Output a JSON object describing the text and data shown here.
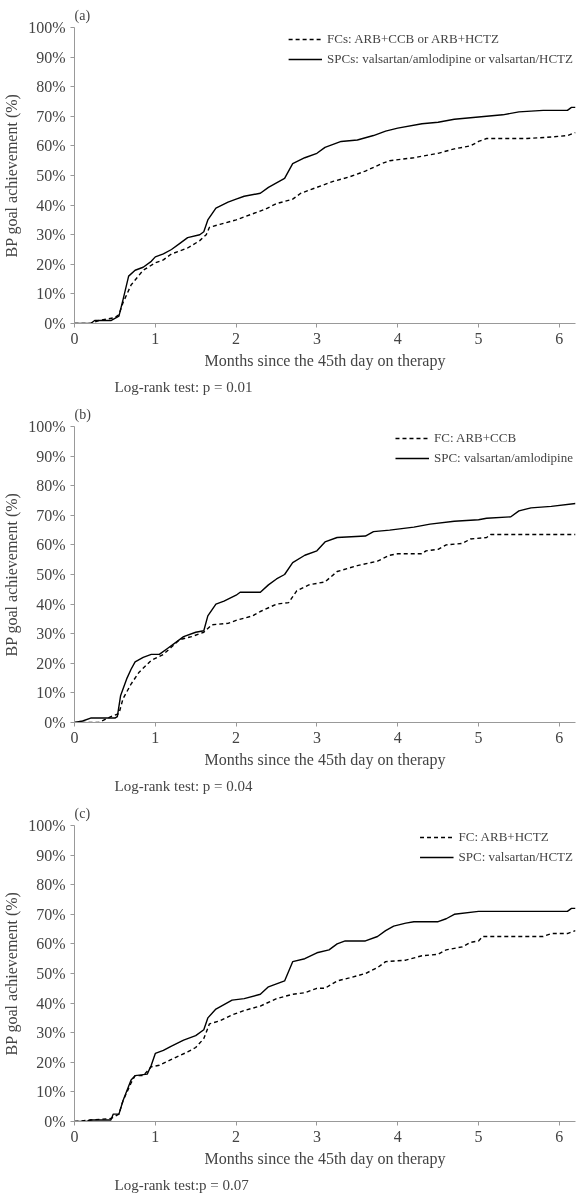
{
  "chart_data": [
    {
      "type": "line",
      "title": "(a)",
      "xlabel": "Months since the 45th day on therapy",
      "ylabel": "BP goal achievement (%)",
      "annotations": [
        "Log-rank test: p = 0.01"
      ],
      "xlim": [
        0,
        6.2
      ],
      "xticks": [
        0,
        1,
        2,
        3,
        4,
        5,
        6
      ],
      "ylim": [
        0,
        100
      ],
      "yticks": [
        {
          "value": 0,
          "label": "0%"
        },
        {
          "value": 10,
          "label": "10%"
        },
        {
          "value": 20,
          "label": "20%"
        },
        {
          "value": 30,
          "label": "30%"
        },
        {
          "value": 40,
          "label": "40%"
        },
        {
          "value": 50,
          "label": "50%"
        },
        {
          "value": 60,
          "label": "60%"
        },
        {
          "value": 70,
          "label": "70%"
        },
        {
          "value": 80,
          "label": "80%"
        },
        {
          "value": 90,
          "label": "90%"
        },
        {
          "value": 100,
          "label": "100%"
        }
      ],
      "grid": false,
      "legend": "top right",
      "marker": "none",
      "series": [
        {
          "name": "FCs: ARB+CCB or ARB+HCTZ",
          "color": "#000000",
          "line_style": "dashed",
          "x": [
            0,
            0.2,
            0.3,
            0.5,
            0.55,
            0.6,
            0.7,
            0.85,
            1.0,
            1.1,
            1.2,
            1.4,
            1.55,
            1.63,
            1.67,
            1.8,
            2.0,
            2.2,
            2.35,
            2.5,
            2.7,
            2.8,
            3.0,
            3.2,
            3.4,
            3.6,
            3.8,
            3.9,
            4.2,
            4.5,
            4.7,
            4.9,
            5.0,
            5.1,
            5.6,
            5.9,
            6.1,
            6.2
          ],
          "values": [
            0,
            0,
            1,
            2,
            3,
            7,
            13,
            18,
            20.5,
            21.5,
            23.5,
            25.5,
            28,
            30,
            32.5,
            33.5,
            35,
            37,
            38.5,
            40.5,
            42,
            44,
            46,
            48,
            49.5,
            51.5,
            54,
            55,
            56,
            57.5,
            59,
            60,
            61.5,
            62.5,
            62.5,
            63,
            63.5,
            64.5
          ]
        },
        {
          "name": "SPCs: valsartan/amlodipine or valsartan/HCTZ",
          "color": "#000000",
          "line_style": "solid",
          "x": [
            0,
            0.2,
            0.25,
            0.45,
            0.55,
            0.6,
            0.67,
            0.75,
            0.85,
            0.95,
            1.0,
            1.1,
            1.2,
            1.3,
            1.4,
            1.55,
            1.6,
            1.65,
            1.75,
            1.9,
            2.0,
            2.1,
            2.3,
            2.4,
            2.5,
            2.6,
            2.7,
            2.85,
            3.0,
            3.1,
            3.3,
            3.5,
            3.7,
            3.85,
            4.0,
            4.3,
            4.5,
            4.7,
            4.9,
            5.1,
            5.3,
            5.5,
            5.8,
            6.1,
            6.15,
            6.2
          ],
          "values": [
            0,
            0,
            1,
            1,
            2.5,
            8,
            16,
            18,
            19,
            21,
            22.5,
            23.5,
            25,
            27,
            29,
            30,
            31,
            35,
            39,
            41,
            42,
            43,
            44,
            46,
            47.5,
            49,
            54,
            56,
            57.5,
            59.5,
            61.5,
            62,
            63.5,
            65,
            66,
            67.5,
            68,
            69,
            69.5,
            70,
            70.5,
            71.5,
            72,
            72,
            73,
            73
          ]
        }
      ]
    },
    {
      "type": "line",
      "title": "(b)",
      "xlabel": "Months since the 45th day on therapy",
      "ylabel": "BP goal achievement (%)",
      "annotations": [
        "Log-rank test: p = 0.04"
      ],
      "xlim": [
        0,
        6.2
      ],
      "xticks": [
        0,
        1,
        2,
        3,
        4,
        5,
        6
      ],
      "ylim": [
        0,
        100
      ],
      "yticks": [
        {
          "value": 0,
          "label": "0%"
        },
        {
          "value": 10,
          "label": "10%"
        },
        {
          "value": 20,
          "label": "20%"
        },
        {
          "value": 30,
          "label": "30%"
        },
        {
          "value": 40,
          "label": "40%"
        },
        {
          "value": 50,
          "label": "50%"
        },
        {
          "value": 60,
          "label": "60%"
        },
        {
          "value": 70,
          "label": "70%"
        },
        {
          "value": 80,
          "label": "80%"
        },
        {
          "value": 90,
          "label": "90%"
        },
        {
          "value": 100,
          "label": "100%"
        }
      ],
      "grid": false,
      "legend": "top right",
      "marker": "none",
      "series": [
        {
          "name": "FC: ARB+CCB",
          "color": "#000000",
          "line_style": "dashed",
          "x": [
            0,
            0.3,
            0.45,
            0.55,
            0.6,
            0.7,
            0.8,
            0.95,
            1.1,
            1.2,
            1.3,
            1.45,
            1.6,
            1.7,
            1.9,
            2.0,
            2.2,
            2.3,
            2.5,
            2.65,
            2.75,
            2.9,
            3.1,
            3.25,
            3.5,
            3.75,
            3.9,
            4.0,
            4.3,
            4.35,
            4.5,
            4.6,
            4.8,
            4.9,
            5.1,
            5.15,
            6.2
          ],
          "values": [
            0,
            0,
            2,
            3,
            8,
            13,
            17,
            21,
            23,
            25.5,
            28,
            29,
            30.5,
            33,
            33.5,
            34.5,
            36,
            37.5,
            40,
            40.5,
            44.5,
            46.5,
            47.5,
            51,
            53,
            54.5,
            56.5,
            57,
            57,
            58,
            58.5,
            60,
            60.5,
            62,
            62.5,
            63.5,
            63.5
          ]
        },
        {
          "name": "SPC: valsartan/amlodipine",
          "color": "#000000",
          "line_style": "solid",
          "x": [
            0,
            0.1,
            0.2,
            0.5,
            0.53,
            0.57,
            0.65,
            0.7,
            0.75,
            0.85,
            0.95,
            1.05,
            1.15,
            1.25,
            1.35,
            1.5,
            1.6,
            1.65,
            1.75,
            1.85,
            2.0,
            2.05,
            2.3,
            2.4,
            2.5,
            2.6,
            2.7,
            2.85,
            3.0,
            3.1,
            3.25,
            3.6,
            3.7,
            3.9,
            4.2,
            4.4,
            4.7,
            5.0,
            5.1,
            5.4,
            5.5,
            5.65,
            5.9,
            6.2
          ],
          "values": [
            0,
            0.5,
            1.5,
            1.5,
            2,
            9,
            15,
            18,
            20.5,
            22,
            23,
            23,
            25,
            27,
            29,
            30.5,
            31,
            36,
            40,
            41,
            43,
            44,
            44,
            46.5,
            48.5,
            50,
            54,
            56.5,
            58,
            61,
            62.5,
            63,
            64.5,
            65,
            66,
            67,
            68,
            68.5,
            69,
            69.5,
            71.5,
            72.5,
            73,
            74
          ]
        }
      ]
    },
    {
      "type": "line",
      "title": "(c)",
      "xlabel": "Months since the 45th day on therapy",
      "ylabel": "BP goal achievement (%)",
      "annotations": [
        "Log-rank test:p = 0.07"
      ],
      "xlim": [
        0,
        6.2
      ],
      "xticks": [
        0,
        1,
        2,
        3,
        4,
        5,
        6
      ],
      "ylim": [
        0,
        100
      ],
      "yticks": [
        {
          "value": 0,
          "label": "0%"
        },
        {
          "value": 10,
          "label": "10%"
        },
        {
          "value": 20,
          "label": "20%"
        },
        {
          "value": 30,
          "label": "30%"
        },
        {
          "value": 40,
          "label": "40%"
        },
        {
          "value": 50,
          "label": "50%"
        },
        {
          "value": 60,
          "label": "60%"
        },
        {
          "value": 70,
          "label": "70%"
        },
        {
          "value": 80,
          "label": "80%"
        },
        {
          "value": 90,
          "label": "90%"
        },
        {
          "value": 100,
          "label": "100%"
        }
      ],
      "grid": false,
      "legend": "top right",
      "marker": "none",
      "series": [
        {
          "name": "FC: ARB+HCTZ",
          "color": "#000000",
          "line_style": "dashed",
          "x": [
            0,
            0.2,
            0.45,
            0.55,
            0.6,
            0.7,
            0.75,
            0.85,
            0.95,
            1.05,
            1.2,
            1.4,
            1.5,
            1.6,
            1.67,
            1.8,
            1.95,
            2.1,
            2.3,
            2.5,
            2.7,
            2.85,
            3.0,
            3.1,
            3.25,
            3.4,
            3.6,
            3.75,
            3.85,
            4.1,
            4.3,
            4.5,
            4.6,
            4.8,
            4.9,
            5.0,
            5.05,
            5.8,
            5.9,
            6.1,
            6.2
          ],
          "values": [
            0,
            0.5,
            1,
            2.5,
            7,
            13,
            15.5,
            15.5,
            18.5,
            19,
            21,
            23.5,
            25,
            28,
            33,
            34,
            36,
            37.5,
            39,
            41.5,
            43,
            43.5,
            45,
            45,
            47.5,
            48.5,
            50,
            52,
            54,
            54.5,
            56,
            56.5,
            58,
            59,
            60.5,
            61,
            62.5,
            62.5,
            63.5,
            63.5,
            64.5
          ]
        },
        {
          "name": "SPC: valsartan/HCTZ",
          "color": "#000000",
          "line_style": "solid",
          "x": [
            0,
            0.15,
            0.2,
            0.45,
            0.48,
            0.55,
            0.6,
            0.7,
            0.75,
            0.9,
            0.95,
            1.0,
            1.1,
            1.2,
            1.35,
            1.5,
            1.6,
            1.65,
            1.75,
            1.85,
            1.95,
            2.1,
            2.3,
            2.4,
            2.5,
            2.6,
            2.7,
            2.85,
            3.0,
            3.15,
            3.25,
            3.35,
            3.6,
            3.75,
            3.85,
            3.95,
            4.1,
            4.2,
            4.5,
            4.6,
            4.7,
            5.0,
            6.1,
            6.15,
            6.2
          ],
          "values": [
            0,
            0,
            0.5,
            0.5,
            2.5,
            2.5,
            7,
            14,
            15.5,
            16,
            19,
            23,
            24,
            25.5,
            27.5,
            29,
            31,
            35,
            38,
            39.5,
            41,
            41.5,
            43,
            45.5,
            46.5,
            47.5,
            54,
            55,
            57,
            58,
            60,
            61,
            61,
            62.5,
            64.5,
            66,
            67,
            67.5,
            67.5,
            68.5,
            70,
            71,
            71,
            72,
            72
          ]
        }
      ]
    }
  ]
}
